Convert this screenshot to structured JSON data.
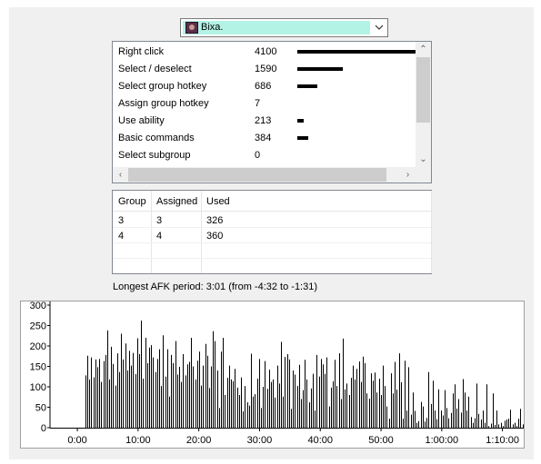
{
  "player": {
    "name": "Bixa."
  },
  "actions": [
    {
      "label": "Right click",
      "value": 4100
    },
    {
      "label": "Select / deselect",
      "value": 1590
    },
    {
      "label": "Select group hotkey",
      "value": 686
    },
    {
      "label": "Assign group hotkey",
      "value": 7
    },
    {
      "label": "Use ability",
      "value": 213
    },
    {
      "label": "Basic commands",
      "value": 384
    },
    {
      "label": "Select subgroup",
      "value": 0
    }
  ],
  "groups": {
    "columns": [
      "Group",
      "Assigned",
      "Used"
    ],
    "rows": [
      [
        "3",
        "3",
        "326"
      ],
      [
        "4",
        "4",
        "360"
      ]
    ]
  },
  "afk_text": "Longest AFK period: 3:01 (from -4:32 to -1:31)",
  "chart_data": {
    "type": "bar",
    "title": "",
    "xlabel": "",
    "ylabel": "",
    "ylim": [
      0,
      300
    ],
    "yticks": [
      "0",
      "50",
      "100",
      "150",
      "200",
      "250",
      "300"
    ],
    "xtick_labels": [
      "0:00",
      "10:00",
      "20:00",
      "30:00",
      "40:00",
      "50:00",
      "1:00:00",
      "1:10:00"
    ],
    "xlim_minutes": [
      -4.5,
      73.5
    ],
    "values": [
      128,
      176,
      118,
      172,
      123,
      167,
      148,
      168,
      112,
      163,
      178,
      238,
      118,
      198,
      156,
      103,
      182,
      136,
      230,
      167,
      206,
      140,
      188,
      152,
      183,
      131,
      219,
      180,
      262,
      120,
      220,
      158,
      196,
      202,
      172,
      136,
      168,
      192,
      102,
      226,
      125,
      192,
      76,
      178,
      158,
      212,
      130,
      149,
      112,
      180,
      128,
      155,
      161,
      220,
      150,
      118,
      164,
      186,
      103,
      152,
      205,
      176,
      97,
      150,
      236,
      212,
      140,
      48,
      186,
      220,
      80,
      122,
      152,
      118,
      114,
      144,
      98,
      80,
      123,
      40,
      102,
      62,
      54,
      181,
      76,
      82,
      120,
      168,
      48,
      100,
      163,
      95,
      142,
      112,
      118,
      74,
      152,
      108,
      210,
      76,
      173,
      180,
      167,
      46,
      140,
      130,
      102,
      154,
      70,
      92,
      166,
      118,
      62,
      96,
      132,
      42,
      178,
      125,
      168,
      155,
      132,
      172,
      52,
      98,
      114,
      166,
      102,
      182,
      70,
      218,
      94,
      108,
      80,
      122,
      152,
      118,
      144,
      162,
      112,
      174,
      158,
      84,
      71,
      133,
      115,
      135,
      86,
      120,
      80,
      152,
      102,
      52,
      22,
      133,
      84,
      161,
      93,
      182,
      111,
      22,
      164,
      42,
      148,
      32,
      86,
      41,
      12,
      16,
      63,
      52,
      15,
      24,
      136,
      58,
      115,
      42,
      21,
      94,
      42,
      30,
      92,
      48,
      23,
      36,
      84,
      106,
      47,
      70,
      37,
      119,
      86,
      42,
      76,
      26,
      12,
      23,
      108,
      34,
      20,
      42,
      12,
      106,
      4,
      10,
      84,
      7,
      42,
      8,
      12,
      4,
      17,
      20,
      22,
      44,
      8,
      12,
      4,
      22,
      46,
      8
    ]
  }
}
